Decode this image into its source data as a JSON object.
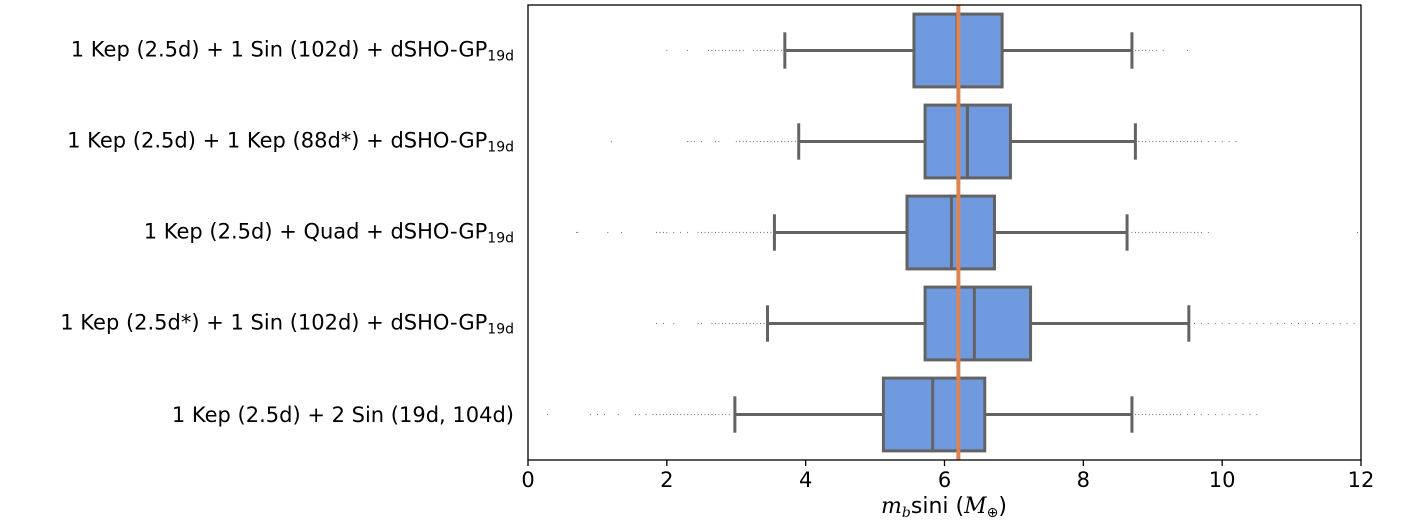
{
  "chart_data": {
    "type": "boxplot",
    "orientation": "horizontal",
    "title": "",
    "xlabel": {
      "m": "m",
      "m_sub": "b",
      "text": "sini (",
      "unit": "M",
      "unit_sub": "⊕",
      "close": ")"
    },
    "xlim": [
      0,
      12
    ],
    "xticks": [
      "0",
      "2",
      "4",
      "6",
      "8",
      "10",
      "12"
    ],
    "reference_line": {
      "x": 6.2,
      "color": "#dd8452"
    },
    "box_color": "#6f9ae0",
    "line_color": "#636363",
    "categories": [
      {
        "main": "1 Kep (2.5d) + 1 Sin (102d) + dSHO-GP",
        "sub": "19d",
        "whisker_low": 3.7,
        "q1": 5.56,
        "median": 6.18,
        "q3": 6.83,
        "whisker_high": 8.7,
        "outliers": [
          2.0,
          2.3,
          2.6,
          2.65,
          2.7,
          2.75,
          2.8,
          2.85,
          2.9,
          2.95,
          3.0,
          3.05,
          3.1,
          3.25,
          3.3,
          3.35,
          3.4,
          3.45,
          3.5,
          3.55,
          3.6,
          3.65,
          8.75,
          8.8,
          8.85,
          8.9,
          8.95,
          9.0,
          9.05,
          9.15,
          9.5
        ]
      },
      {
        "main": "1 Kep (2.5d) + 1 Kep (88d*) + dSHO-GP",
        "sub": "19d",
        "whisker_low": 3.9,
        "q1": 5.72,
        "median": 6.33,
        "q3": 6.95,
        "whisker_high": 8.75,
        "outliers": [
          1.2,
          2.3,
          2.35,
          2.4,
          2.5,
          2.7,
          2.75,
          3.0,
          3.05,
          3.1,
          3.15,
          3.2,
          3.25,
          3.3,
          3.35,
          3.4,
          3.45,
          3.5,
          3.55,
          3.6,
          3.65,
          3.7,
          3.75,
          3.8,
          3.85,
          8.8,
          8.85,
          8.9,
          8.95,
          9.0,
          9.05,
          9.1,
          9.15,
          9.2,
          9.25,
          9.3,
          9.35,
          9.4,
          9.45,
          9.5,
          9.55,
          9.6,
          9.65,
          9.7,
          9.8,
          9.9,
          10.0,
          10.1,
          10.2
        ]
      },
      {
        "main": "1 Kep (2.5d) + Quad + dSHO-GP",
        "sub": "19d",
        "whisker_low": 3.55,
        "q1": 5.46,
        "median": 6.1,
        "q3": 6.72,
        "whisker_high": 8.63,
        "outliers": [
          0.7,
          0.72,
          1.15,
          1.35,
          1.85,
          1.9,
          1.95,
          2.0,
          2.1,
          2.2,
          2.3,
          2.45,
          2.5,
          2.55,
          2.6,
          2.65,
          2.7,
          2.75,
          2.8,
          2.85,
          2.9,
          2.95,
          3.0,
          3.05,
          3.1,
          3.15,
          3.2,
          3.25,
          3.3,
          3.35,
          3.4,
          3.45,
          3.5,
          8.7,
          8.75,
          8.8,
          8.85,
          8.9,
          8.95,
          9.0,
          9.05,
          9.1,
          9.15,
          9.2,
          9.25,
          9.3,
          9.35,
          9.4,
          9.45,
          9.5,
          9.55,
          9.6,
          9.65,
          9.7,
          9.8,
          11.95
        ]
      },
      {
        "main": "1 Kep (2.5d*) + 1 Sin (102d) + dSHO-GP",
        "sub": "19d",
        "whisker_low": 3.45,
        "q1": 5.72,
        "median": 6.43,
        "q3": 7.24,
        "whisker_high": 9.52,
        "outliers": [
          1.85,
          1.95,
          2.1,
          2.45,
          2.5,
          2.65,
          2.7,
          2.75,
          2.8,
          2.85,
          2.9,
          2.95,
          3.0,
          3.05,
          3.1,
          3.15,
          3.2,
          3.25,
          3.3,
          3.35,
          3.4,
          9.6,
          9.7,
          9.8,
          9.9,
          10.0,
          10.1,
          10.2,
          10.3,
          10.4,
          10.5,
          10.6,
          10.7,
          10.8,
          10.9,
          11.0,
          11.1,
          11.2,
          11.3,
          11.4,
          11.5,
          11.6,
          11.7,
          11.8,
          11.9,
          12.0
        ]
      },
      {
        "main": "1 Kep (2.5d) + 2 Sin (19d, 104d)",
        "sub": "",
        "whisker_low": 2.98,
        "q1": 5.12,
        "median": 5.83,
        "q3": 6.58,
        "whisker_high": 8.7,
        "outliers": [
          0.28,
          0.9,
          1.0,
          1.1,
          1.3,
          1.55,
          1.6,
          1.7,
          1.8,
          1.85,
          1.9,
          1.95,
          2.0,
          2.05,
          2.1,
          2.15,
          2.2,
          2.25,
          2.3,
          2.35,
          2.4,
          2.45,
          2.5,
          2.55,
          2.6,
          2.65,
          2.7,
          2.75,
          2.8,
          2.85,
          2.9,
          8.75,
          8.8,
          8.85,
          8.9,
          8.95,
          9.0,
          9.05,
          9.1,
          9.15,
          9.2,
          9.25,
          9.3,
          9.35,
          9.4,
          9.5,
          9.6,
          9.7,
          9.8,
          9.9,
          10.0,
          10.1,
          10.2,
          10.3,
          10.4,
          10.5
        ]
      }
    ]
  }
}
